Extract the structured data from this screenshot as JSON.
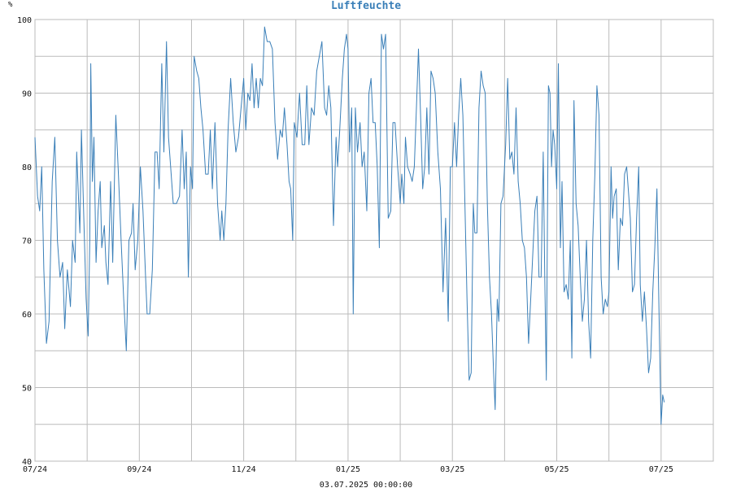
{
  "chart_data": {
    "type": "line",
    "title": "Luftfeuchte",
    "unit": "%",
    "footer": "03.07.2025 00:00:00",
    "ylim": [
      40,
      100
    ],
    "yticks": [
      40,
      50,
      60,
      70,
      80,
      90,
      100
    ],
    "xlim": [
      0,
      13
    ],
    "x_tick_labels": [
      {
        "pos": 0,
        "label": "07/24"
      },
      {
        "pos": 2,
        "label": "09/24"
      },
      {
        "pos": 4,
        "label": "11/24"
      },
      {
        "pos": 6,
        "label": "01/25"
      },
      {
        "pos": 8,
        "label": "03/25"
      },
      {
        "pos": 10,
        "label": "05/25"
      },
      {
        "pos": 12,
        "label": "07/25"
      }
    ],
    "x_gridlines": [
      0,
      1,
      2,
      3,
      4,
      5,
      6,
      7,
      8,
      9,
      10,
      11,
      12
    ],
    "grid": true,
    "line_color": "#3a7fb8",
    "grid_color": "#bbbbbb",
    "series": [
      {
        "values": [
          [
            0.0,
            84
          ],
          [
            0.05,
            76
          ],
          [
            0.09,
            74
          ],
          [
            0.13,
            80
          ],
          [
            0.17,
            66
          ],
          [
            0.22,
            56
          ],
          [
            0.27,
            59
          ],
          [
            0.33,
            78
          ],
          [
            0.38,
            84
          ],
          [
            0.43,
            70
          ],
          [
            0.48,
            65
          ],
          [
            0.53,
            67
          ],
          [
            0.57,
            58
          ],
          [
            0.62,
            66
          ],
          [
            0.68,
            61
          ],
          [
            0.72,
            70
          ],
          [
            0.77,
            67
          ],
          [
            0.8,
            82
          ],
          [
            0.86,
            71
          ],
          [
            0.89,
            85
          ],
          [
            0.94,
            72
          ],
          [
            0.98,
            62
          ],
          [
            1.02,
            57
          ],
          [
            1.05,
            70
          ],
          [
            1.07,
            94
          ],
          [
            1.1,
            78
          ],
          [
            1.13,
            84
          ],
          [
            1.17,
            67
          ],
          [
            1.21,
            74
          ],
          [
            1.25,
            78
          ],
          [
            1.28,
            69
          ],
          [
            1.33,
            72
          ],
          [
            1.36,
            67
          ],
          [
            1.4,
            64
          ],
          [
            1.45,
            78
          ],
          [
            1.49,
            67
          ],
          [
            1.55,
            87
          ],
          [
            1.6,
            79
          ],
          [
            1.65,
            70
          ],
          [
            1.7,
            62
          ],
          [
            1.75,
            55
          ],
          [
            1.8,
            70
          ],
          [
            1.85,
            71
          ],
          [
            1.88,
            75
          ],
          [
            1.92,
            66
          ],
          [
            1.97,
            70
          ],
          [
            2.02,
            80
          ],
          [
            2.07,
            74
          ],
          [
            2.12,
            65
          ],
          [
            2.15,
            60
          ],
          [
            2.2,
            60
          ],
          [
            2.25,
            66
          ],
          [
            2.3,
            82
          ],
          [
            2.34,
            82
          ],
          [
            2.38,
            77
          ],
          [
            2.43,
            94
          ],
          [
            2.47,
            82
          ],
          [
            2.52,
            97
          ],
          [
            2.56,
            84
          ],
          [
            2.6,
            80
          ],
          [
            2.65,
            75
          ],
          [
            2.71,
            75
          ],
          [
            2.77,
            76
          ],
          [
            2.82,
            85
          ],
          [
            2.86,
            77
          ],
          [
            2.9,
            82
          ],
          [
            2.94,
            65
          ],
          [
            2.98,
            80
          ],
          [
            3.02,
            77
          ],
          [
            3.05,
            95
          ],
          [
            3.1,
            93
          ],
          [
            3.14,
            92
          ],
          [
            3.18,
            88
          ],
          [
            3.22,
            85
          ],
          [
            3.27,
            79
          ],
          [
            3.32,
            79
          ],
          [
            3.36,
            85
          ],
          [
            3.4,
            77
          ],
          [
            3.45,
            86
          ],
          [
            3.5,
            75
          ],
          [
            3.55,
            70
          ],
          [
            3.58,
            74
          ],
          [
            3.62,
            70
          ],
          [
            3.66,
            75
          ],
          [
            3.7,
            85
          ],
          [
            3.75,
            92
          ],
          [
            3.8,
            86
          ],
          [
            3.85,
            82
          ],
          [
            3.9,
            84
          ],
          [
            3.95,
            88
          ],
          [
            4.0,
            92
          ],
          [
            4.04,
            85
          ],
          [
            4.08,
            90
          ],
          [
            4.12,
            89
          ],
          [
            4.16,
            94
          ],
          [
            4.2,
            88
          ],
          [
            4.24,
            92
          ],
          [
            4.28,
            88
          ],
          [
            4.32,
            92
          ],
          [
            4.36,
            91
          ],
          [
            4.4,
            99
          ],
          [
            4.45,
            97
          ],
          [
            4.5,
            97
          ],
          [
            4.55,
            96
          ],
          [
            4.6,
            86
          ],
          [
            4.65,
            81
          ],
          [
            4.7,
            85
          ],
          [
            4.74,
            84
          ],
          [
            4.78,
            88
          ],
          [
            4.83,
            83
          ],
          [
            4.87,
            78
          ],
          [
            4.9,
            77
          ],
          [
            4.94,
            70
          ],
          [
            4.97,
            86
          ],
          [
            5.02,
            84
          ],
          [
            5.07,
            90
          ],
          [
            5.12,
            83
          ],
          [
            5.17,
            83
          ],
          [
            5.21,
            91
          ],
          [
            5.25,
            83
          ],
          [
            5.3,
            88
          ],
          [
            5.35,
            87
          ],
          [
            5.4,
            93
          ],
          [
            5.45,
            95
          ],
          [
            5.5,
            97
          ],
          [
            5.55,
            88
          ],
          [
            5.59,
            87
          ],
          [
            5.63,
            91
          ],
          [
            5.67,
            88
          ],
          [
            5.72,
            72
          ],
          [
            5.77,
            84
          ],
          [
            5.8,
            80
          ],
          [
            5.84,
            85
          ],
          [
            5.89,
            92
          ],
          [
            5.93,
            96
          ],
          [
            5.97,
            98
          ],
          [
            6.0,
            96
          ],
          [
            6.03,
            82
          ],
          [
            6.07,
            88
          ],
          [
            6.1,
            60
          ],
          [
            6.14,
            88
          ],
          [
            6.18,
            82
          ],
          [
            6.23,
            86
          ],
          [
            6.27,
            80
          ],
          [
            6.31,
            82
          ],
          [
            6.36,
            74
          ],
          [
            6.4,
            90
          ],
          [
            6.44,
            92
          ],
          [
            6.48,
            86
          ],
          [
            6.52,
            86
          ],
          [
            6.56,
            80
          ],
          [
            6.6,
            69
          ],
          [
            6.64,
            98
          ],
          [
            6.68,
            96
          ],
          [
            6.72,
            98
          ],
          [
            6.77,
            73
          ],
          [
            6.82,
            74
          ],
          [
            6.86,
            86
          ],
          [
            6.9,
            86
          ],
          [
            6.95,
            80
          ],
          [
            7.0,
            75
          ],
          [
            7.03,
            79
          ],
          [
            7.07,
            75
          ],
          [
            7.1,
            84
          ],
          [
            7.14,
            80
          ],
          [
            7.19,
            79
          ],
          [
            7.23,
            78
          ],
          [
            7.27,
            80
          ],
          [
            7.31,
            88
          ],
          [
            7.35,
            96
          ],
          [
            7.39,
            87
          ],
          [
            7.43,
            77
          ],
          [
            7.47,
            80
          ],
          [
            7.51,
            88
          ],
          [
            7.55,
            79
          ],
          [
            7.59,
            93
          ],
          [
            7.63,
            92
          ],
          [
            7.67,
            90
          ],
          [
            7.72,
            82
          ],
          [
            7.77,
            77
          ],
          [
            7.82,
            63
          ],
          [
            7.87,
            73
          ],
          [
            7.92,
            59
          ],
          [
            7.96,
            80
          ],
          [
            8.0,
            80
          ],
          [
            8.04,
            86
          ],
          [
            8.08,
            80
          ],
          [
            8.12,
            87
          ],
          [
            8.16,
            92
          ],
          [
            8.2,
            87
          ],
          [
            8.24,
            75
          ],
          [
            8.28,
            62
          ],
          [
            8.32,
            51
          ],
          [
            8.36,
            52
          ],
          [
            8.4,
            75
          ],
          [
            8.43,
            71
          ],
          [
            8.47,
            71
          ],
          [
            8.51,
            88
          ],
          [
            8.55,
            93
          ],
          [
            8.59,
            91
          ],
          [
            8.63,
            90
          ],
          [
            8.67,
            75
          ],
          [
            8.71,
            65
          ],
          [
            8.75,
            60
          ],
          [
            8.79,
            52
          ],
          [
            8.82,
            47
          ],
          [
            8.86,
            62
          ],
          [
            8.89,
            59
          ],
          [
            8.93,
            75
          ],
          [
            8.97,
            76
          ],
          [
            9.02,
            83
          ],
          [
            9.06,
            92
          ],
          [
            9.1,
            81
          ],
          [
            9.14,
            82
          ],
          [
            9.18,
            79
          ],
          [
            9.22,
            88
          ],
          [
            9.26,
            78
          ],
          [
            9.3,
            75
          ],
          [
            9.34,
            70
          ],
          [
            9.38,
            69
          ],
          [
            9.42,
            65
          ],
          [
            9.46,
            56
          ],
          [
            9.5,
            62
          ],
          [
            9.54,
            68
          ],
          [
            9.58,
            74
          ],
          [
            9.62,
            76
          ],
          [
            9.66,
            65
          ],
          [
            9.7,
            65
          ],
          [
            9.74,
            82
          ],
          [
            9.77,
            65
          ],
          [
            9.8,
            51
          ],
          [
            9.84,
            91
          ],
          [
            9.87,
            90
          ],
          [
            9.9,
            80
          ],
          [
            9.93,
            85
          ],
          [
            9.96,
            83
          ],
          [
            10.0,
            77
          ],
          [
            10.03,
            94
          ],
          [
            10.07,
            69
          ],
          [
            10.1,
            78
          ],
          [
            10.14,
            63
          ],
          [
            10.18,
            64
          ],
          [
            10.22,
            62
          ],
          [
            10.26,
            70
          ],
          [
            10.29,
            54
          ],
          [
            10.33,
            89
          ],
          [
            10.37,
            75
          ],
          [
            10.41,
            72
          ],
          [
            10.45,
            65
          ],
          [
            10.49,
            59
          ],
          [
            10.53,
            62
          ],
          [
            10.57,
            70
          ],
          [
            10.61,
            59
          ],
          [
            10.65,
            54
          ],
          [
            10.69,
            70
          ],
          [
            10.73,
            79
          ],
          [
            10.77,
            91
          ],
          [
            10.81,
            87
          ],
          [
            10.85,
            65
          ],
          [
            10.89,
            60
          ],
          [
            10.93,
            62
          ],
          [
            10.97,
            61
          ],
          [
            11.0,
            63
          ],
          [
            11.04,
            80
          ],
          [
            11.07,
            73
          ],
          [
            11.1,
            76
          ],
          [
            11.14,
            77
          ],
          [
            11.18,
            66
          ],
          [
            11.22,
            73
          ],
          [
            11.26,
            72
          ],
          [
            11.3,
            79
          ],
          [
            11.34,
            80
          ],
          [
            11.38,
            76
          ],
          [
            11.41,
            73
          ],
          [
            11.45,
            63
          ],
          [
            11.49,
            64
          ],
          [
            11.53,
            73
          ],
          [
            11.57,
            80
          ],
          [
            11.6,
            64
          ],
          [
            11.64,
            59
          ],
          [
            11.68,
            63
          ],
          [
            11.72,
            58
          ],
          [
            11.76,
            52
          ],
          [
            11.8,
            54
          ],
          [
            11.84,
            63
          ],
          [
            11.88,
            69
          ],
          [
            11.92,
            77
          ],
          [
            11.96,
            60
          ],
          [
            12.0,
            45
          ],
          [
            12.03,
            49
          ],
          [
            12.06,
            48
          ]
        ]
      }
    ]
  }
}
